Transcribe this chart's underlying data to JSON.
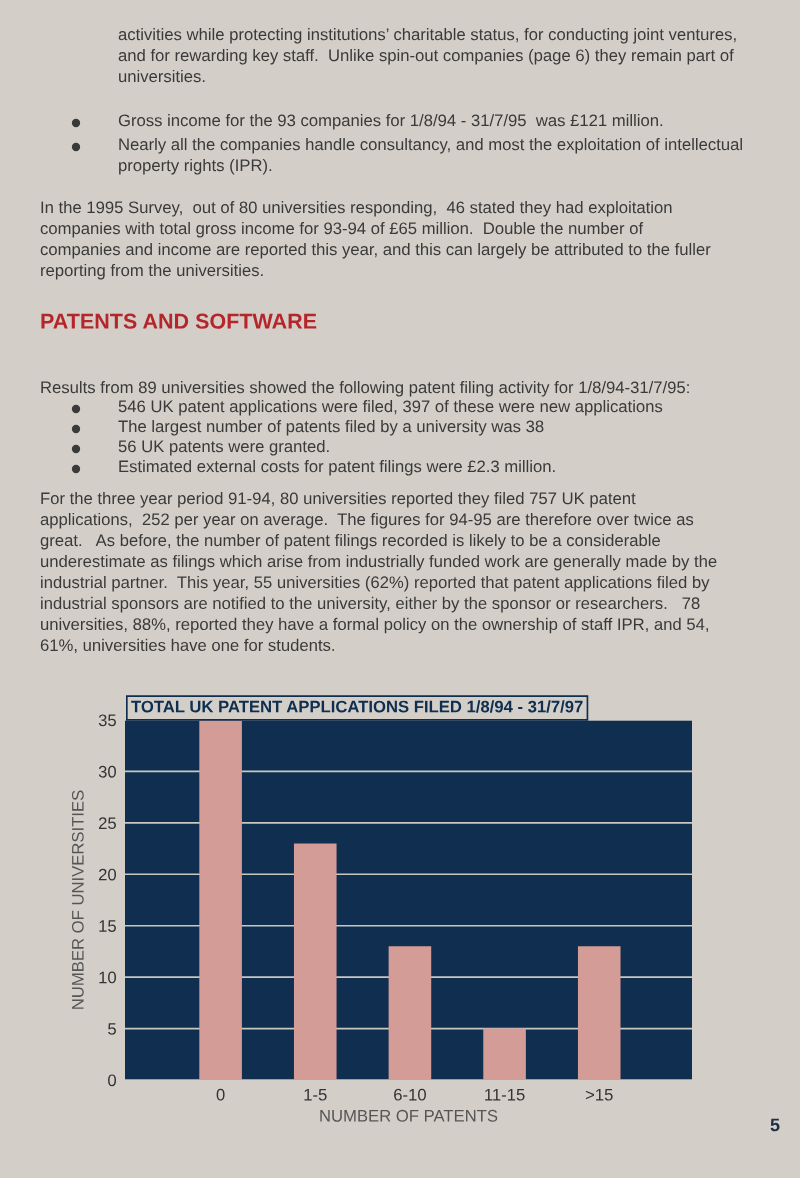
{
  "chart_data": {
    "type": "bar",
    "title": "TOTAL UK PATENT APPLICATIONS FILED 1/8/94 - 31/7/97",
    "xlabel": "NUMBER OF PATENTS",
    "ylabel": "NUMBER OF UNIVERSITIES",
    "categories": [
      "0",
      "1-5",
      "6-10",
      "11-15",
      ">15"
    ],
    "values": [
      35,
      23,
      13,
      5,
      13
    ],
    "color": "#d49c96",
    "ylim": [
      0,
      35
    ],
    "yticks": [
      0,
      5,
      10,
      15,
      20,
      25,
      30,
      35
    ],
    "grid": "y",
    "legend": false,
    "annotations": [
      "activities while protecting institutions’ charitable status, for conducting joint ventures,\nand for rewarding key staff.  Unlike spin-out companies (page 6) they remain part of\nuniversities.",
      "Gross income for the 93 companies for 1/8/94 - 31/7/95  was £121 million.",
      "Nearly all the companies handle consultancy, and most the exploitation of intellectual\nproperty rights (IPR).",
      "In the 1995 Survey,  out of 80 universities responding,  46 stated they had exploitation\ncompanies with total gross income for 93-94 of £65 million.  Double the number of\ncompanies and income are reported this year, and this can largely be attributed to the fuller\nreporting from the universities.",
      "PATENTS AND SOFTWARE",
      "Results from 89 universities showed the following patent filing activity for 1/8/94-31/7/95:",
      "546 UK patent applications were filed, 397 of these were new applications",
      "The largest number of patents filed by a university was 38",
      "56 UK patents were granted.",
      "Estimated external costs for patent filings were £2.3 million.",
      "For the three year period 91-94, 80 universities reported they filed 757 UK patent\napplications,  252 per year on average.  The figures for 94-95 are therefore over twice as\ngreat.   As before, the number of patent filings recorded is likely to be a considerable\nunderestimate as filings which arise from industrially funded work are generally made by the\nindustrial partner.  This year, 55 universities (62%) reported that patent applications filed by\nindustrial sponsors are notified to the university, either by the sponsor or researchers.   78\nuniversities, 88%, reported they have a formal policy on the ownership of staff IPR, and 54,\n61%, universities have one for students.",
      "5"
    ]
  }
}
